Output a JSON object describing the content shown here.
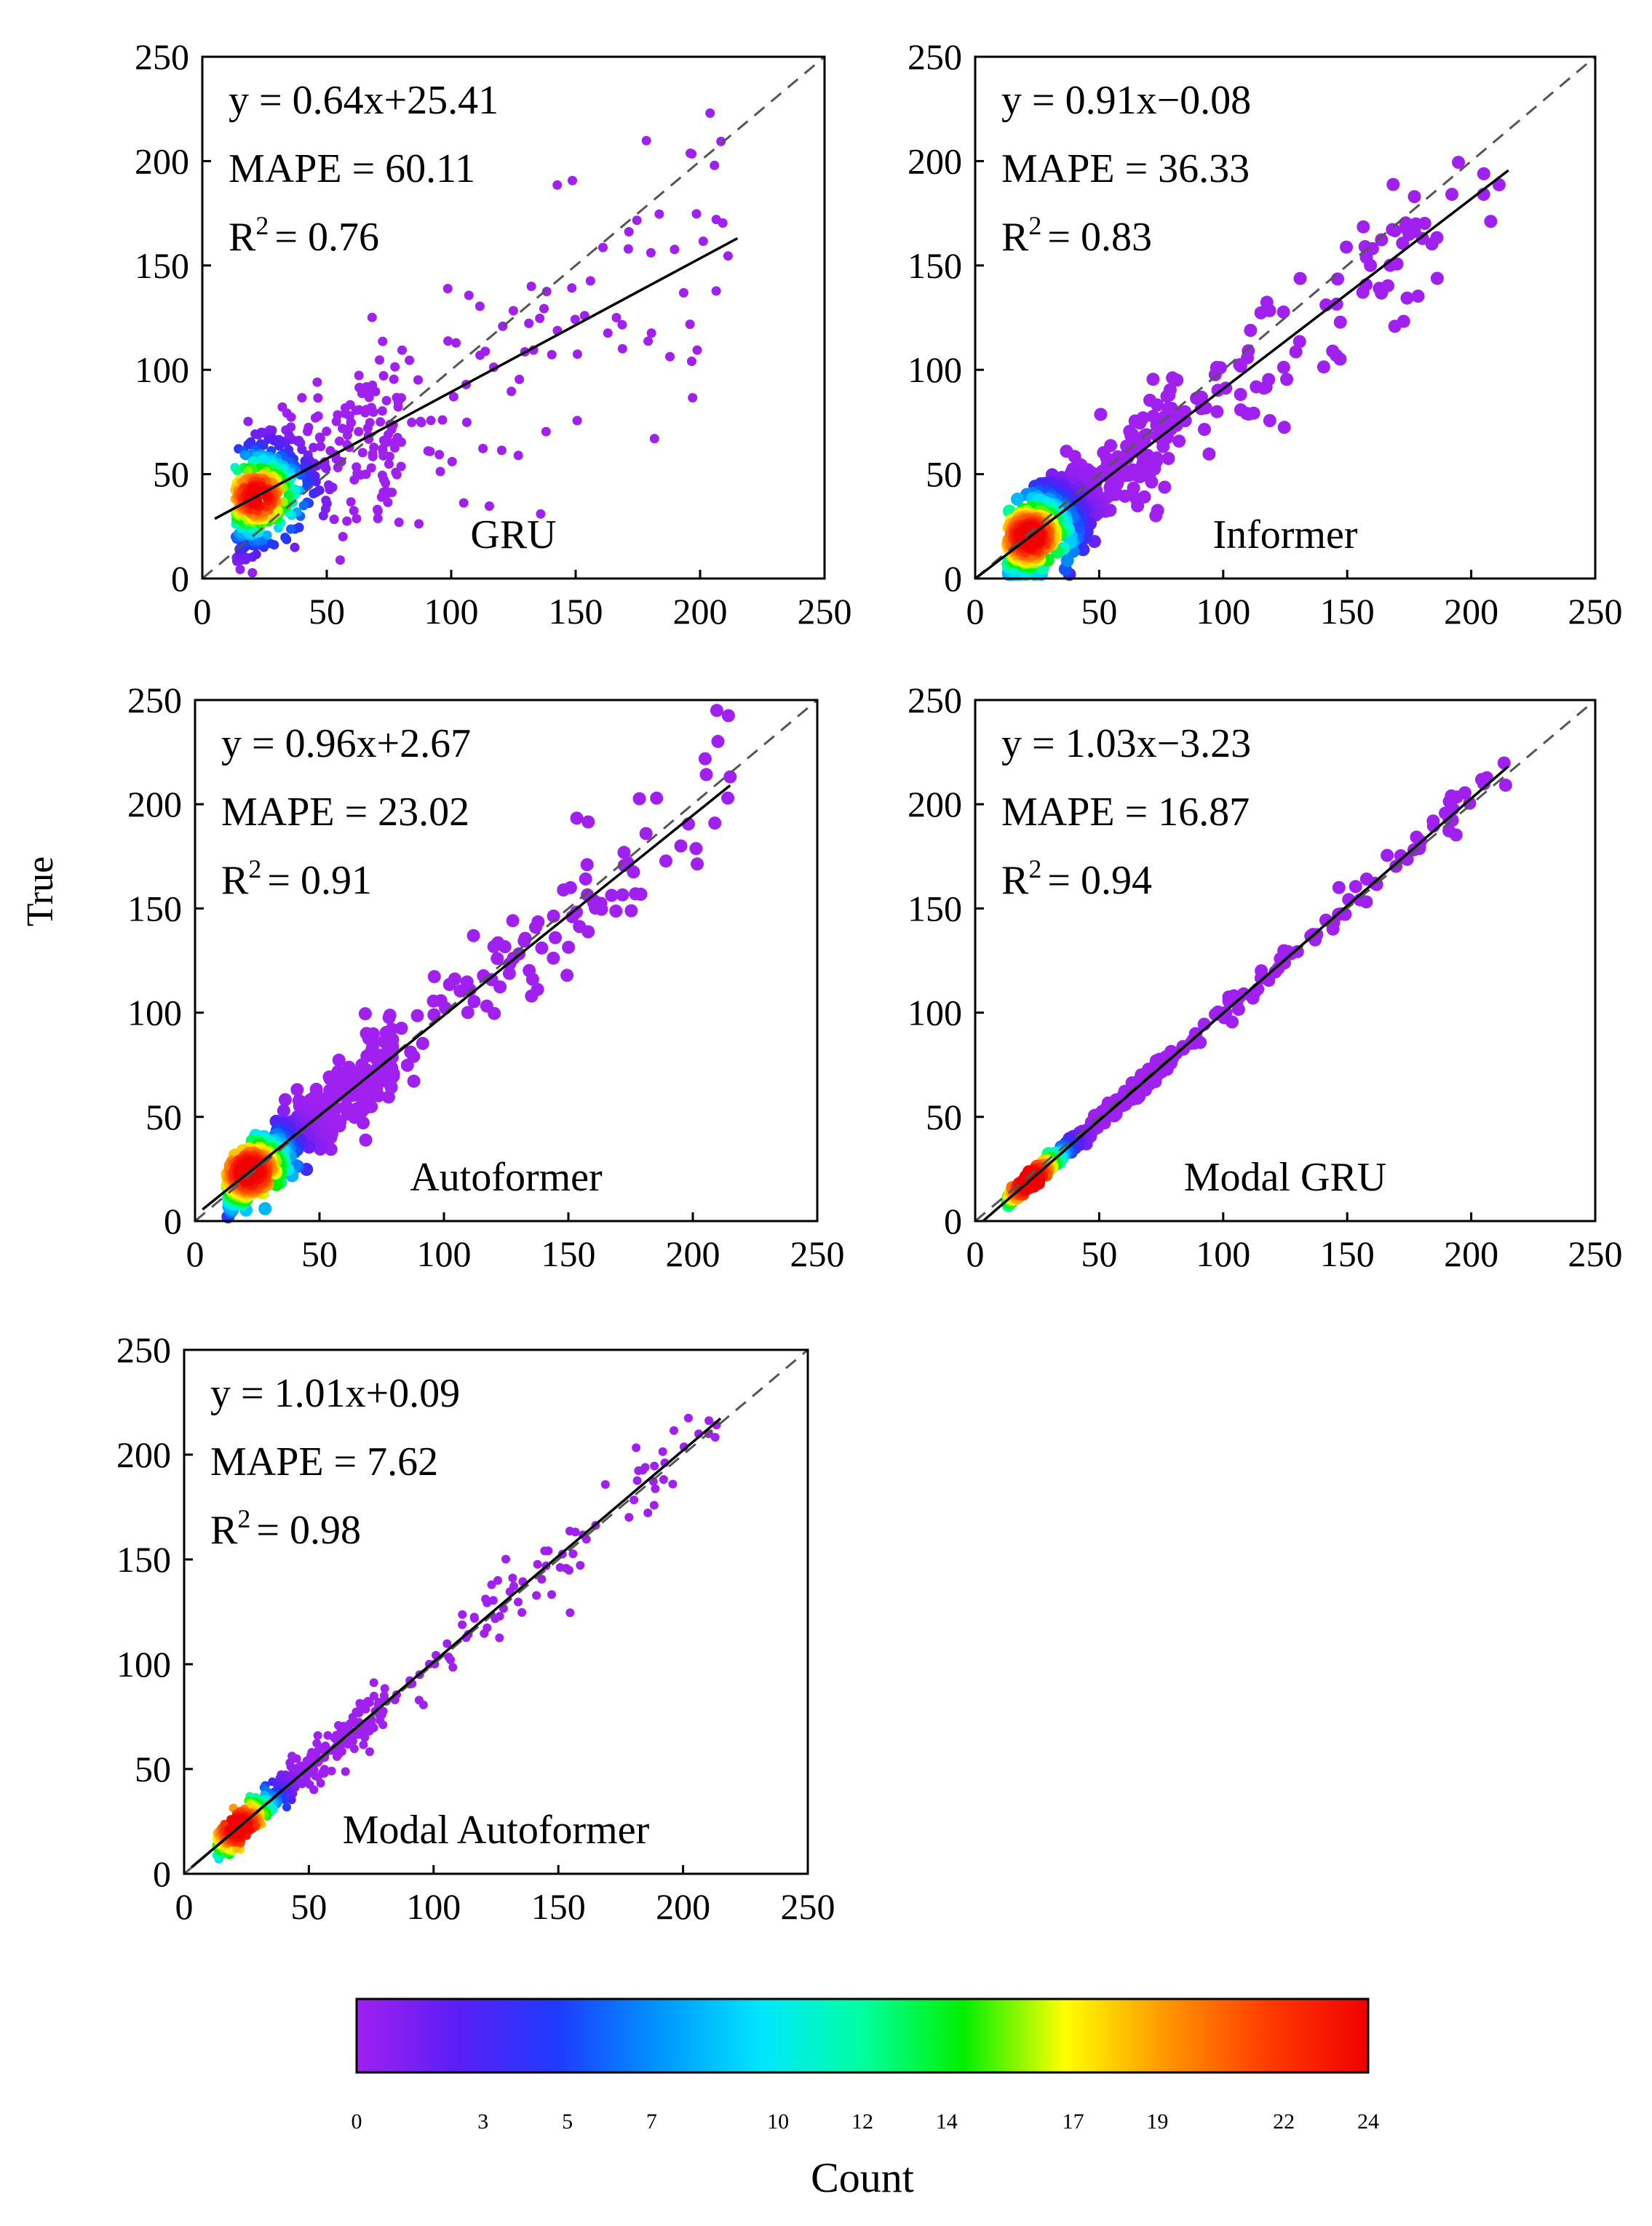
{
  "figure": {
    "ylabel": "True",
    "colorbar": {
      "label": "Count",
      "ticks": [
        "0",
        "3",
        "5",
        "7",
        "10",
        "12",
        "14",
        "17",
        "19",
        "22",
        "24"
      ],
      "range": [
        0,
        24
      ],
      "colors": [
        "#a020f0",
        "#5a1ef5",
        "#1e3cff",
        "#0096ff",
        "#00e6ff",
        "#00ffa0",
        "#00f000",
        "#ffff00",
        "#ff9600",
        "#ff3c00",
        "#f00000"
      ]
    }
  },
  "chart_data": [
    {
      "type": "scatter",
      "model": "GRU",
      "label": "GRU",
      "equation": "y = 0.64x+25.41",
      "mape": "MAPE = 60.11",
      "r2_value": "= 0.76",
      "slope": 0.64,
      "intercept": 25.41,
      "fit_x": [
        5,
        215
      ],
      "spread": 22,
      "xlim": [
        0,
        250
      ],
      "ylim": [
        0,
        250
      ],
      "xticks": [
        "0",
        "50",
        "100",
        "150",
        "200",
        "250"
      ],
      "yticks": [
        "0",
        "50",
        "100",
        "150",
        "200",
        "250"
      ]
    },
    {
      "type": "scatter",
      "model": "Informer",
      "label": "Informer",
      "equation": "y = 0.91x−0.08",
      "mape": "MAPE = 36.33",
      "r2_value": "= 0.83",
      "slope": 0.91,
      "intercept": -0.08,
      "fit_x": [
        0,
        215
      ],
      "spread": 14,
      "xlim": [
        0,
        250
      ],
      "ylim": [
        0,
        250
      ],
      "xticks": [
        "0",
        "50",
        "100",
        "150",
        "200",
        "250"
      ],
      "yticks": [
        "0",
        "50",
        "100",
        "150",
        "200",
        "250"
      ]
    },
    {
      "type": "scatter",
      "model": "Autoformer",
      "label": "Autoformer",
      "equation": "y = 0.96x+2.67",
      "mape": "MAPE = 23.02",
      "r2_value": "= 0.91",
      "slope": 0.96,
      "intercept": 2.67,
      "fit_x": [
        3,
        215
      ],
      "spread": 11,
      "xlim": [
        0,
        250
      ],
      "ylim": [
        0,
        250
      ],
      "xticks": [
        "0",
        "50",
        "100",
        "150",
        "200",
        "250"
      ],
      "yticks": [
        "0",
        "50",
        "100",
        "150",
        "200",
        "250"
      ]
    },
    {
      "type": "scatter",
      "model": "Modal GRU",
      "label": "Modal GRU",
      "equation": "y = 1.03x−3.23",
      "mape": "MAPE = 16.87",
      "r2_value": "= 0.94",
      "slope": 1.03,
      "intercept": -3.23,
      "fit_x": [
        3,
        215
      ],
      "spread": 2.5,
      "xlim": [
        0,
        250
      ],
      "ylim": [
        0,
        250
      ],
      "xticks": [
        "0",
        "50",
        "100",
        "150",
        "200",
        "250"
      ],
      "yticks": [
        "0",
        "50",
        "100",
        "150",
        "200",
        "250"
      ]
    },
    {
      "type": "scatter",
      "model": "Modal Autoformer",
      "label": "Modal Autoformer",
      "equation": "y = 1.01x+0.09",
      "mape": "MAPE = 7.62",
      "r2_value": "= 0.98",
      "slope": 1.01,
      "intercept": 0.09,
      "fit_x": [
        3,
        215
      ],
      "spread": 6,
      "xlim": [
        0,
        250
      ],
      "ylim": [
        0,
        250
      ],
      "xticks": [
        "0",
        "50",
        "100",
        "150",
        "200",
        "250"
      ],
      "yticks": [
        "0",
        "50",
        "100",
        "150",
        "200",
        "250"
      ]
    }
  ]
}
